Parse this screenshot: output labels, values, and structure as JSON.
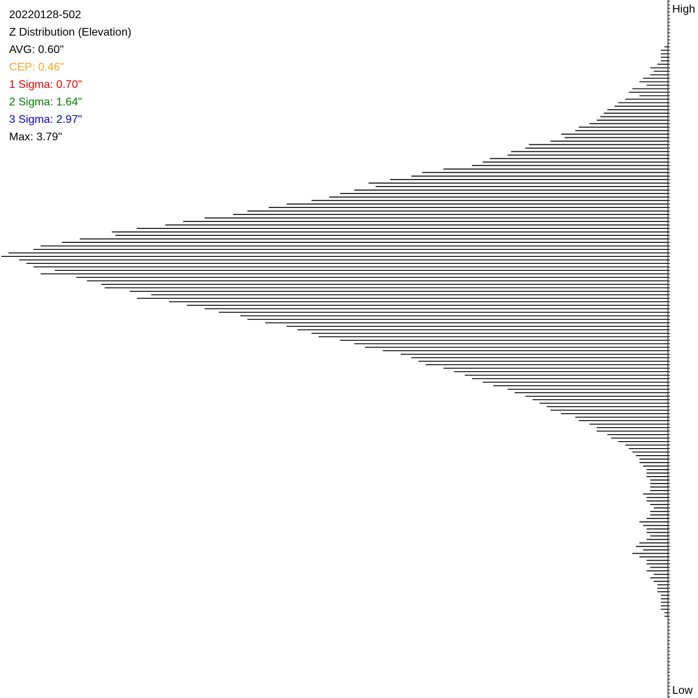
{
  "info": {
    "title": "20220128-502",
    "subtitle": "Z Distribution (Elevation)",
    "avg": "AVG: 0.60\"",
    "cep": "CEP: 0.46\"",
    "sigma1": "1 Sigma: 0.70\"",
    "sigma2": "2 Sigma: 1.64\"",
    "sigma3": "3 Sigma: 2.97\"",
    "max": "Max: 3.79\""
  },
  "axis": {
    "high": "High",
    "low": "Low"
  },
  "colors": {
    "text": "#000000",
    "cep": "#f5a623",
    "sigma1": "#e00000",
    "sigma2": "#007a00",
    "sigma3": "#0000d0",
    "bars": "#000000",
    "background": "#ffffff"
  },
  "chart_data": {
    "type": "bar",
    "orientation": "horizontal",
    "direction": "right-to-left",
    "y_order": "High at top, Low at bottom",
    "series": [
      {
        "values": [
          0,
          0,
          0,
          0,
          0,
          0,
          0,
          0,
          0,
          0,
          0,
          0,
          0,
          1,
          2,
          2,
          2,
          2,
          3,
          5,
          4,
          5,
          7,
          8,
          6,
          10,
          11,
          8,
          12,
          14,
          15,
          17,
          18,
          19,
          20,
          22,
          25,
          26,
          30,
          29,
          33,
          39,
          40,
          44,
          45,
          50,
          52,
          55,
          63,
          69,
          72,
          78,
          84,
          82,
          88,
          92,
          95,
          100,
          107,
          112,
          118,
          122,
          130,
          136,
          141,
          149,
          156,
          155,
          165,
          170,
          176,
          178,
          185,
          187,
          182,
          180,
          178,
          172,
          176,
          166,
          163,
          159,
          158,
          151,
          145,
          149,
          140,
          135,
          130,
          126,
          120,
          118,
          113,
          107,
          104,
          100,
          98,
          92,
          88,
          85,
          80,
          75,
          72,
          70,
          68,
          63,
          60,
          57,
          55,
          52,
          49,
          45,
          43,
          40,
          38,
          36,
          34,
          33,
          30,
          26,
          25,
          22,
          20,
          20,
          17,
          16,
          14,
          12,
          11,
          10,
          9,
          8,
          8,
          7,
          6,
          6,
          6,
          5,
          5,
          5,
          5,
          7,
          6,
          6,
          5,
          4,
          5,
          5,
          6,
          8,
          7,
          6,
          6,
          5,
          6,
          8,
          9,
          7,
          10,
          8,
          6,
          6,
          5,
          6,
          4,
          5,
          4,
          3,
          3,
          3,
          2,
          2,
          2,
          2,
          2,
          1,
          1,
          0,
          0,
          0,
          0,
          0,
          0,
          0,
          0,
          0,
          0,
          0,
          0,
          0,
          0,
          0,
          0,
          0,
          0,
          0,
          0,
          0,
          0,
          0
        ]
      }
    ]
  }
}
